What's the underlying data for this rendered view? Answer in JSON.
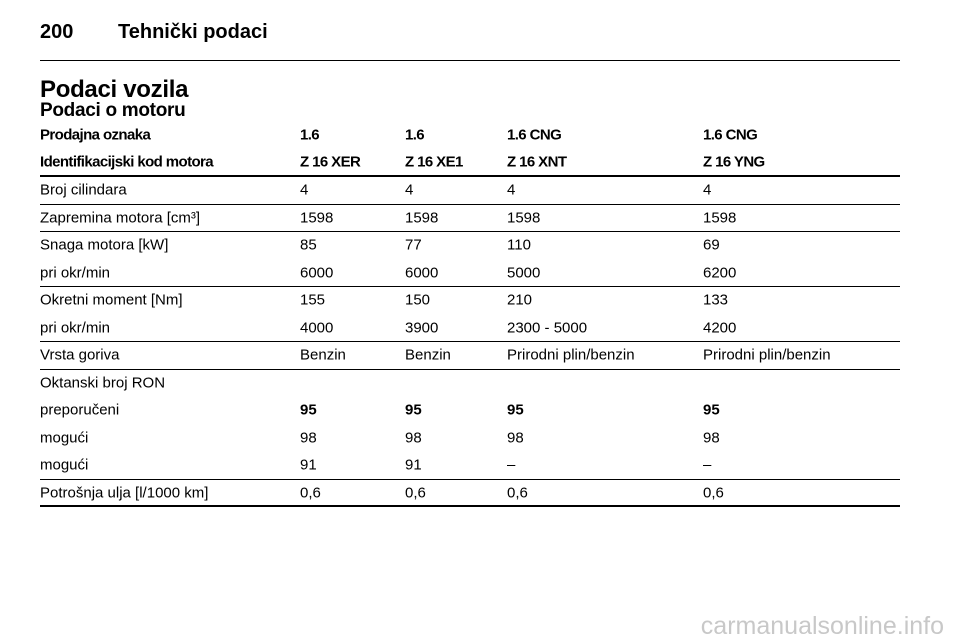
{
  "header": {
    "page_number": "200",
    "section": "Tehnički podaci"
  },
  "title": "Podaci vozila",
  "subtitle": "Podaci o motoru",
  "table": {
    "head": [
      [
        "Prodajna oznaka",
        "1.6",
        "1.6",
        "1.6 CNG",
        "1.6 CNG"
      ],
      [
        "Identifikacijski kod motora",
        "Z 16 XER",
        "Z 16 XE1",
        "Z 16 XNT",
        "Z 16 YNG"
      ]
    ],
    "groups": [
      [
        [
          "Broj cilindara",
          "4",
          "4",
          "4",
          "4"
        ]
      ],
      [
        [
          "Zapremina motora [cm³]",
          "1598",
          "1598",
          "1598",
          "1598"
        ]
      ],
      [
        [
          "Snaga motora [kW]",
          "85",
          "77",
          "110",
          "69"
        ],
        [
          "pri okr/min",
          "6000",
          "6000",
          "5000",
          "6200"
        ]
      ],
      [
        [
          "Okretni moment [Nm]",
          "155",
          "150",
          "210",
          "133"
        ],
        [
          "pri okr/min",
          "4000",
          "3900",
          "2300 - 5000",
          "4200"
        ]
      ],
      [
        [
          "Vrsta goriva",
          "Benzin",
          "Benzin",
          "Prirodni plin/benzin",
          "Prirodni plin/benzin"
        ]
      ],
      [
        [
          "Oktanski broj RON"
        ],
        [
          "preporučeni",
          "95",
          "95",
          "95",
          "95"
        ],
        [
          "mogući",
          "98",
          "98",
          "98",
          "98"
        ],
        [
          "mogući",
          "91",
          "91",
          "–",
          "–"
        ]
      ],
      [
        [
          "Potrošnja ulja [l/1000 km]",
          "0,6",
          "0,6",
          "0,6",
          "0,6"
        ]
      ]
    ]
  },
  "watermark": "carmanualsonline.info"
}
